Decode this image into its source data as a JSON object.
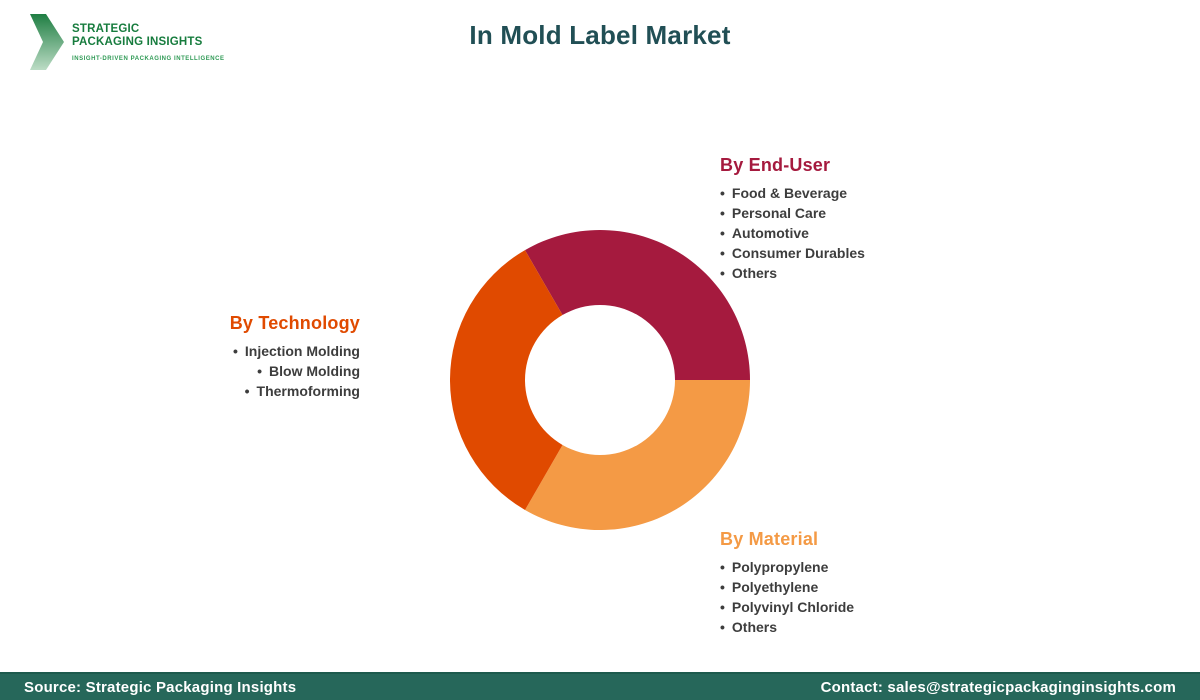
{
  "header": {
    "title": "In Mold Label Market",
    "logo": {
      "line1": "STRATEGIC",
      "line2": "PACKAGING INSIGHTS",
      "tagline": "INSIGHT-DRIVEN PACKAGING INTELLIGENCE",
      "green": "#177c3e"
    }
  },
  "chart_data": {
    "type": "pie",
    "donut": true,
    "title": "In Mold Label Market",
    "rotation_deg": -30,
    "inner_radius_ratio": 0.5,
    "legend_position": "around",
    "segments": [
      {
        "label": "By End-User",
        "value": 33.33,
        "color": "#a51a3e"
      },
      {
        "label": "By Material",
        "value": 33.33,
        "color": "#f49a45"
      },
      {
        "label": "By Technology",
        "value": 33.34,
        "color": "#e04a00"
      }
    ]
  },
  "legends": {
    "end_user": {
      "title": "By End-User",
      "color": "#a51a3e",
      "items": [
        "Food & Beverage",
        "Personal Care",
        "Automotive",
        "Consumer Durables",
        "Others"
      ]
    },
    "technology": {
      "title": "By Technology",
      "color": "#e04a00",
      "items": [
        "Injection Molding",
        "Blow Molding",
        "Thermoforming"
      ]
    },
    "material": {
      "title": "By Material",
      "color": "#f49a45",
      "items": [
        "Polypropylene",
        "Polyethylene",
        "Polyvinyl Chloride",
        "Others"
      ]
    }
  },
  "footer": {
    "source": "Source: Strategic Packaging Insights",
    "contact": "Contact: sales@strategicpackaginginsights.com",
    "background": "#26675a"
  }
}
